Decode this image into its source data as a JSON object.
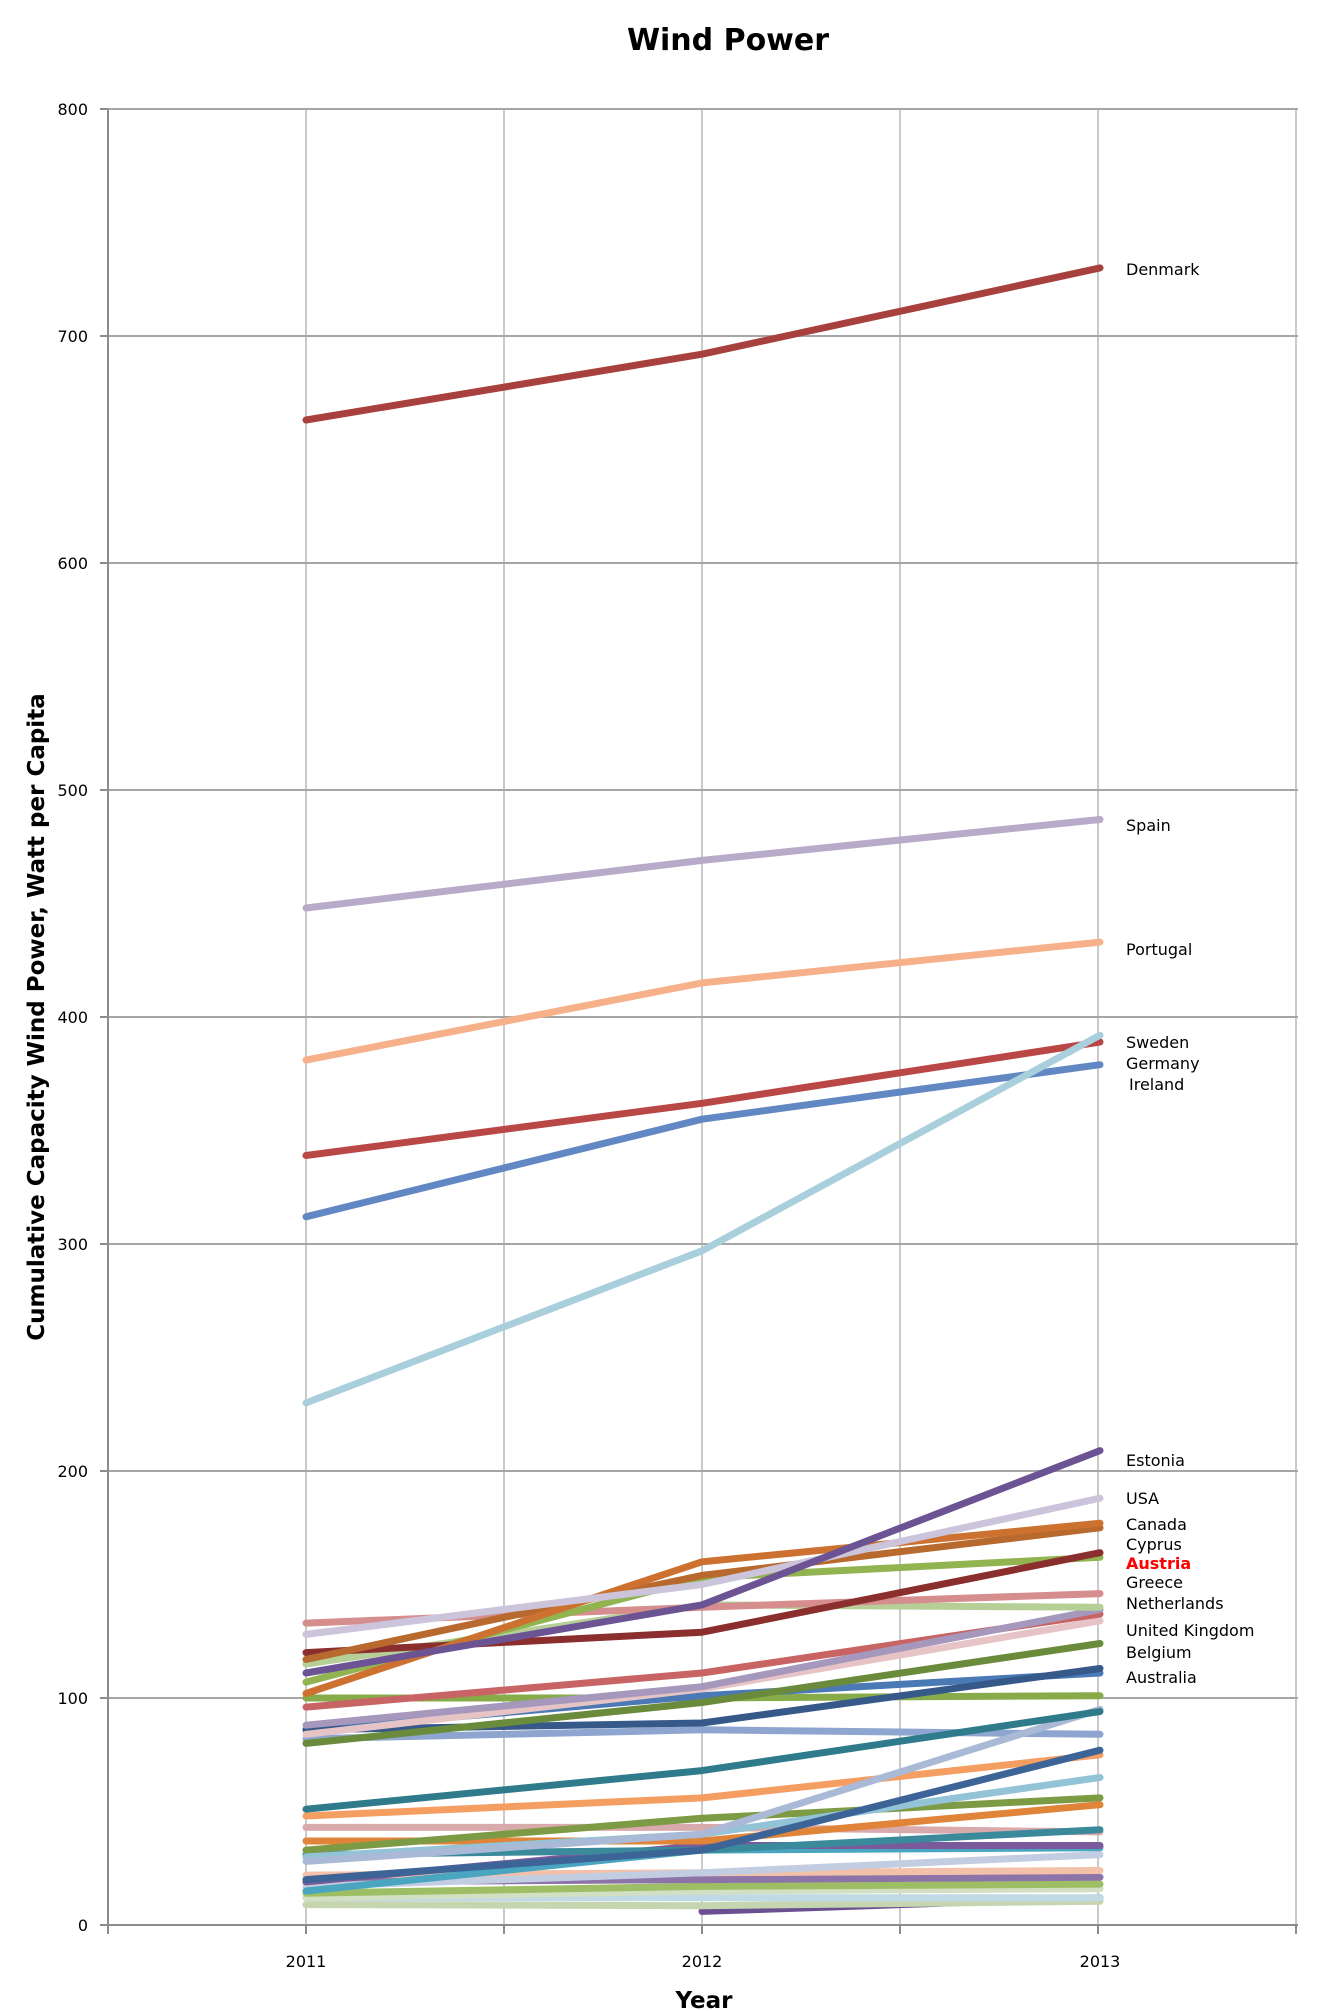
{
  "chart_data": {
    "type": "line",
    "title": "Wind Power",
    "xlabel": "Year",
    "ylabel": "Cumulative Capacity Wind Power, Watt per Capita",
    "x": [
      "2011",
      "2012",
      "2013"
    ],
    "ylim": [
      0,
      800
    ],
    "yticks": [
      0,
      100,
      200,
      300,
      400,
      500,
      600,
      700,
      800
    ],
    "grid": true,
    "legend": "inline labels at right end of lines",
    "series": [
      {
        "name": "Denmark",
        "label": "Denmark",
        "color": "#a8403e",
        "values": [
          663,
          692,
          730
        ]
      },
      {
        "name": "Spain",
        "label": "Spain",
        "color": "#b7abc9",
        "values": [
          448,
          469,
          487
        ]
      },
      {
        "name": "Portugal",
        "label": "Portugal",
        "color": "#f6b18a",
        "values": [
          381,
          415,
          433
        ]
      },
      {
        "name": "Sweden",
        "label": "Sweden",
        "color": "#a9cfdc",
        "values": [
          230,
          297,
          392
        ]
      },
      {
        "name": "Germany",
        "label": "Germany",
        "color": "#b94745",
        "values": [
          339,
          362,
          389
        ]
      },
      {
        "name": "Ireland",
        "label": "Ireland",
        "color": "#6288c3",
        "values": [
          312,
          355,
          379
        ]
      },
      {
        "name": "Estonia",
        "label": "Estonia",
        "color": "#6c5393",
        "values": [
          111,
          141,
          209
        ]
      },
      {
        "name": "USA",
        "label": "USA",
        "color": "#cbc4da",
        "values": [
          128,
          150,
          188
        ]
      },
      {
        "name": "Canada",
        "label": "Canada",
        "color": "#cc7130",
        "values": [
          102,
          160,
          177
        ]
      },
      {
        "name": "Cyprus",
        "label": "Cyprus",
        "color": "#b8692e",
        "values": [
          117,
          154,
          175
        ]
      },
      {
        "name": "Austria",
        "label": "Austria",
        "color": "#8b2e2e",
        "values": [
          120,
          129,
          164
        ],
        "highlight": true
      },
      {
        "name": "Greece",
        "label": "Greece",
        "color": "#91b450",
        "values": [
          107,
          153,
          162
        ]
      },
      {
        "name": "Netherlands",
        "label": "Netherlands",
        "color": "#d58d8e",
        "values": [
          133,
          140,
          146
        ]
      },
      {
        "name": "",
        "label": "",
        "color": "#b5cf97",
        "values": [
          115,
          141,
          140
        ]
      },
      {
        "name": "United Kingdom",
        "label": "United Kingdom",
        "color": "#a697bd",
        "values": [
          88,
          105,
          139
        ]
      },
      {
        "name": "",
        "label": "",
        "color": "#c86464",
        "values": [
          96,
          111,
          137
        ]
      },
      {
        "name": "",
        "label": "",
        "color": "#e6c3c5",
        "values": [
          84,
          104,
          134
        ]
      },
      {
        "name": "Belgium",
        "label": "Belgium",
        "color": "#6b8b3c",
        "values": [
          80,
          98,
          124
        ]
      },
      {
        "name": "Australia",
        "label": "Australia",
        "color": "#36598a",
        "values": [
          86,
          89,
          113
        ]
      },
      {
        "name": "",
        "label": "",
        "color": "#4a79b5",
        "values": [
          86,
          101,
          111
        ]
      },
      {
        "name": "",
        "label": "",
        "color": "#86ab48",
        "values": [
          100,
          100,
          101
        ]
      },
      {
        "name": "",
        "label": "",
        "color": "#2f7b8c",
        "values": [
          51,
          68,
          94
        ]
      },
      {
        "name": "",
        "label": "",
        "color": "#aab9d6",
        "values": [
          28,
          40,
          95
        ]
      },
      {
        "name": "",
        "label": "",
        "color": "#8ea6cf",
        "values": [
          82,
          86,
          84
        ]
      },
      {
        "name": "",
        "label": "",
        "color": "#3c6496",
        "values": [
          20,
          33,
          77
        ]
      },
      {
        "name": "",
        "label": "",
        "color": "#f59e62",
        "values": [
          48,
          56,
          75
        ]
      },
      {
        "name": "",
        "label": "",
        "color": "#92c3d6",
        "values": [
          30,
          40,
          65
        ]
      },
      {
        "name": "",
        "label": "",
        "color": "#7c9b44",
        "values": [
          33,
          47,
          56
        ]
      },
      {
        "name": "",
        "label": "",
        "color": "#e0843a",
        "values": [
          37,
          37,
          53
        ]
      },
      {
        "name": "",
        "label": "",
        "color": "#3a8a9c",
        "values": [
          31,
          33,
          42
        ]
      },
      {
        "name": "",
        "label": "",
        "color": "#d9aaab",
        "values": [
          43,
          43,
          41
        ]
      },
      {
        "name": "",
        "label": "",
        "color": "#7a5a9a",
        "values": [
          19,
          35,
          35
        ]
      },
      {
        "name": "",
        "label": "",
        "color": "#4aa5c0",
        "values": [
          15,
          33,
          34
        ]
      },
      {
        "name": "",
        "label": "",
        "color": "#c3cde1",
        "values": [
          17,
          23,
          31
        ]
      },
      {
        "name": "",
        "label": "",
        "color": "#f3c1aa",
        "values": [
          22,
          23,
          24
        ]
      },
      {
        "name": "",
        "label": "",
        "color": "#8c74a8",
        "values": [
          19,
          20,
          21
        ]
      },
      {
        "name": "",
        "label": "",
        "color": "#9dbe64",
        "values": [
          14,
          17,
          18
        ]
      },
      {
        "name": "",
        "label": "",
        "color": "#d3dfc2",
        "values": [
          12,
          15,
          16
        ]
      },
      {
        "name": "",
        "label": "",
        "color": "#c0d9e4",
        "values": [
          12,
          12,
          12
        ]
      },
      {
        "name": "",
        "label": "",
        "color": "#c5d5b0",
        "values": [
          9,
          8.5,
          10.5
        ]
      },
      {
        "name": "",
        "label": "",
        "color": "#6a5090",
        "values": [
          null,
          6,
          12
        ]
      }
    ]
  }
}
